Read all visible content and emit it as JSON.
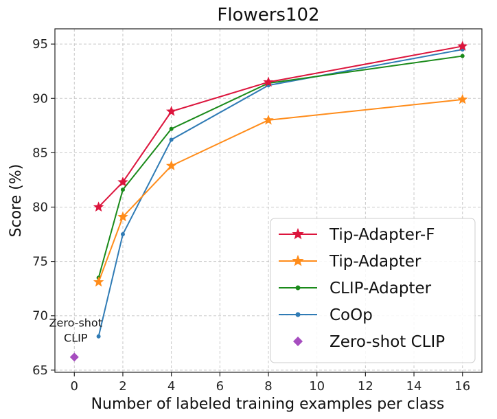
{
  "chart_data": {
    "type": "line",
    "title": "Flowers102",
    "xlabel": "Number of labeled training examples per class",
    "ylabel": "Score (%)",
    "xlim": [
      -0.8,
      16.8
    ],
    "ylim": [
      64.8,
      96.4
    ],
    "xticks": [
      0,
      2,
      4,
      6,
      8,
      10,
      12,
      14,
      16
    ],
    "yticks": [
      65,
      70,
      75,
      80,
      85,
      90,
      95
    ],
    "grid": true,
    "legend_position": "lower-right",
    "series": [
      {
        "name": "Tip-Adapter-F",
        "color": "#dc143c",
        "marker": "star",
        "x": [
          1,
          2,
          4,
          8,
          16
        ],
        "y": [
          80.0,
          82.3,
          88.8,
          91.5,
          94.8
        ]
      },
      {
        "name": "Tip-Adapter",
        "color": "#ff8c1a",
        "marker": "star",
        "x": [
          1,
          2,
          4,
          8,
          16
        ],
        "y": [
          73.1,
          79.1,
          83.8,
          88.0,
          89.9
        ]
      },
      {
        "name": "CLIP-Adapter",
        "color": "#1a8a1a",
        "marker": "dot",
        "x": [
          1,
          2,
          4,
          8,
          16
        ],
        "y": [
          73.5,
          81.6,
          87.2,
          91.4,
          93.9
        ]
      },
      {
        "name": "CoOp",
        "color": "#2f7bb5",
        "marker": "dot",
        "x": [
          1,
          2,
          4,
          8,
          16
        ],
        "y": [
          68.1,
          77.5,
          86.2,
          91.2,
          94.5
        ]
      },
      {
        "name": "Zero-shot CLIP",
        "color": "#a64dbf",
        "marker": "diamond",
        "x": [
          0
        ],
        "y": [
          66.2
        ]
      }
    ],
    "annotations": [
      {
        "text": "Zero-shot",
        "x": 0,
        "y": 69.0
      },
      {
        "text": "CLIP",
        "x": 0,
        "y": 67.6
      }
    ]
  }
}
